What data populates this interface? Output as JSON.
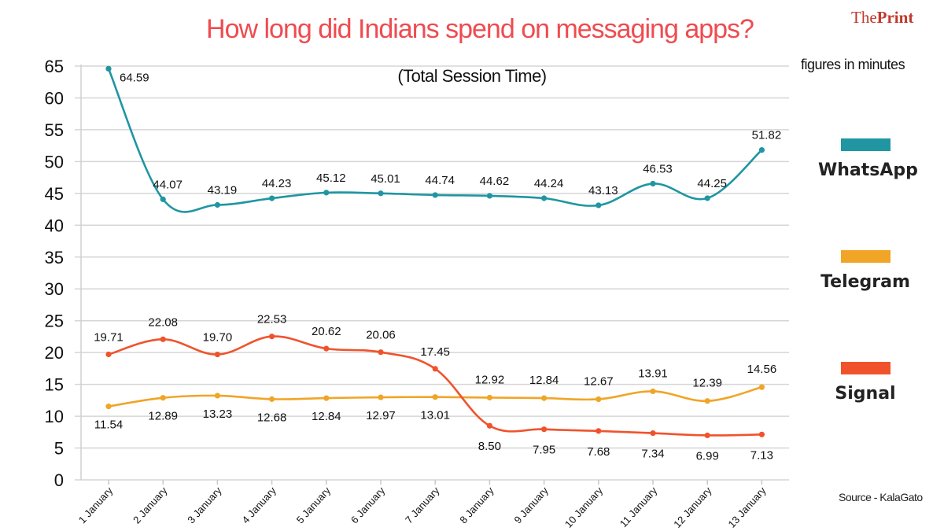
{
  "header": {
    "brand_prefix": "The",
    "brand_bold": "Print",
    "units_note": "figures in minutes",
    "source": "Source - KalaGato"
  },
  "chart_data": {
    "type": "line",
    "title": "How long did Indians spend on messaging apps?",
    "subtitle": "(Total Session Time)",
    "xlabel": "",
    "ylabel": "",
    "ylim": [
      0,
      65
    ],
    "yticks": [
      0,
      5,
      10,
      15,
      20,
      25,
      30,
      35,
      40,
      45,
      50,
      55,
      60,
      65
    ],
    "grid": true,
    "legend_position": "right",
    "categories": [
      "1 January",
      "2 January",
      "3 January",
      "4 January",
      "5 January",
      "6 January",
      "7 January",
      "8 January",
      "9 January",
      "10 January",
      "11 January",
      "12 January",
      "13 January"
    ],
    "series": [
      {
        "name": "WhatsApp",
        "color": "#1f96a1",
        "label_position": "above",
        "values": [
          64.59,
          44.07,
          43.19,
          44.23,
          45.12,
          45.01,
          44.74,
          44.62,
          44.24,
          43.13,
          46.53,
          44.25,
          51.82
        ],
        "labels": [
          "64.59",
          "44.07",
          "43.19",
          "44.23",
          "45.12",
          "45.01",
          "44.74",
          "44.62",
          "44.24",
          "43.13",
          "46.53",
          "44.25",
          "51.82"
        ]
      },
      {
        "name": "Telegram",
        "color": "#f0a526",
        "label_position": "mixed",
        "values": [
          11.54,
          12.89,
          13.23,
          12.68,
          12.84,
          12.97,
          13.01,
          12.92,
          12.84,
          12.67,
          13.91,
          12.39,
          14.56
        ],
        "labels": [
          "11.54",
          "12.89",
          "13.23",
          "12.68",
          "12.84",
          "12.97",
          "13.01",
          "12.92",
          "12.84",
          "12.67",
          "13.91",
          "12.39",
          "14.56"
        ]
      },
      {
        "name": "Signal",
        "color": "#f0532c",
        "label_position": "mixed",
        "values": [
          19.71,
          22.08,
          19.7,
          22.53,
          20.62,
          20.06,
          17.45,
          8.5,
          7.95,
          7.68,
          7.34,
          6.99,
          7.13
        ],
        "labels": [
          "19.71",
          "22.08",
          "19.70",
          "22.53",
          "20.62",
          "20.06",
          "17.45",
          "8.50",
          "7.95",
          "7.68",
          "7.34",
          "6.99",
          "7.13"
        ]
      }
    ]
  }
}
